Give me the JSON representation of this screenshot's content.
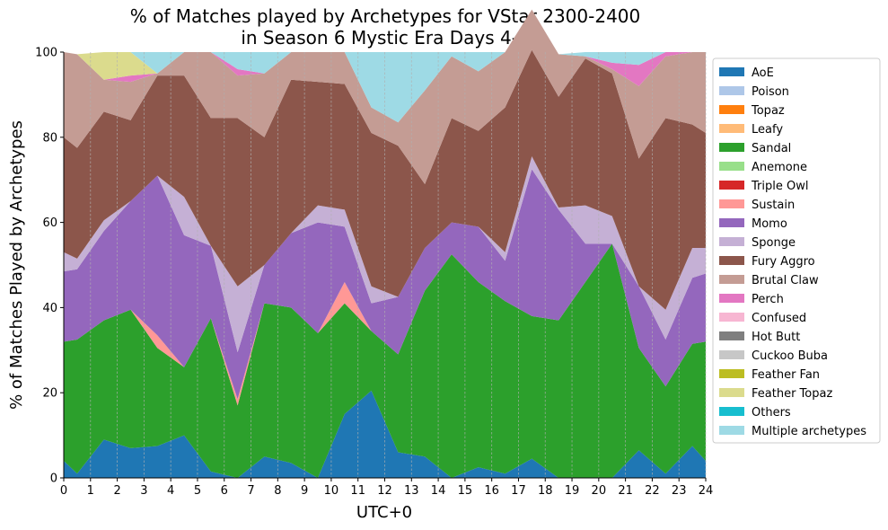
{
  "chart_data": {
    "type": "area",
    "title_line1": "% of Matches played by Archetypes for VStar 2300-2400",
    "title_line2": "in Season 6 Mystic Era Days 4-5",
    "xlabel": "UTC+0",
    "ylabel": "% of Matches Played by Archetypes",
    "xlim": [
      0,
      24
    ],
    "ylim": [
      0,
      100
    ],
    "xticks": [
      0,
      1,
      2,
      3,
      4,
      5,
      6,
      7,
      8,
      9,
      10,
      11,
      12,
      13,
      14,
      15,
      16,
      17,
      18,
      19,
      20,
      21,
      22,
      23,
      24
    ],
    "yticks": [
      0,
      20,
      40,
      60,
      80,
      100
    ],
    "grid": "vertical-dashed",
    "legend_position": "right-outside",
    "x": [
      0,
      0.5,
      1.5,
      2.5,
      3.5,
      4.5,
      5.5,
      6.5,
      7.5,
      8.5,
      9.5,
      10.5,
      11.5,
      12.5,
      13.5,
      14.5,
      15.5,
      16.5,
      17.5,
      18.5,
      19.5,
      20.5,
      21.5,
      22.5,
      23.5,
      24
    ],
    "series": [
      {
        "name": "AoE",
        "color": "#1f77b4",
        "values": [
          4,
          1,
          9,
          7,
          7.5,
          10,
          1.5,
          0,
          5,
          3.5,
          0,
          15,
          20.5,
          6,
          5,
          0,
          2.5,
          1,
          4.5,
          0,
          0,
          0,
          6.5,
          1,
          7.5,
          4
        ]
      },
      {
        "name": "Poison",
        "color": "#aec7e8",
        "values": [
          0,
          0,
          0,
          0,
          0,
          0,
          0,
          0,
          0,
          0,
          0,
          0,
          0,
          0,
          0,
          0,
          0,
          0,
          0,
          0,
          0,
          0,
          0,
          0,
          0,
          0
        ]
      },
      {
        "name": "Topaz",
        "color": "#ff7f0e",
        "values": [
          0,
          0,
          0,
          0,
          0,
          0,
          0,
          0,
          0,
          0,
          0,
          0,
          0,
          0,
          0,
          0,
          0,
          0,
          0,
          0,
          0,
          0,
          0,
          0,
          0,
          0
        ]
      },
      {
        "name": "Leafy",
        "color": "#ffbb78",
        "values": [
          0,
          0,
          0,
          0,
          0,
          0,
          0,
          0,
          0,
          0,
          0,
          0,
          0,
          0,
          0,
          0,
          0,
          0,
          0,
          0,
          0,
          0,
          0,
          0,
          0,
          0
        ]
      },
      {
        "name": "Sandal",
        "color": "#2ca02c",
        "values": [
          28,
          31.5,
          28,
          32.5,
          23,
          16,
          36,
          17,
          36,
          36.5,
          34,
          26,
          14,
          23,
          39,
          52.5,
          43.5,
          40.5,
          33.5,
          37,
          46,
          55,
          24,
          20.5,
          24,
          28
        ]
      },
      {
        "name": "Anemone",
        "color": "#98df8a",
        "values": [
          0,
          0,
          0,
          0,
          0,
          0,
          0,
          0,
          0,
          0,
          0,
          0,
          0,
          0,
          0,
          0,
          0,
          0,
          0,
          0,
          0,
          0,
          0,
          0,
          0,
          0
        ]
      },
      {
        "name": "Triple Owl",
        "color": "#d62728",
        "values": [
          0,
          0,
          0,
          0,
          0,
          0,
          0,
          0,
          0,
          0,
          0,
          0,
          0,
          0,
          0,
          0,
          0,
          0,
          0,
          0,
          0,
          0,
          0,
          0,
          0,
          0
        ]
      },
      {
        "name": "Sustain",
        "color": "#ff9896",
        "values": [
          0,
          0,
          0,
          0,
          3,
          0,
          0,
          1.5,
          0,
          0,
          0,
          5,
          0,
          0,
          0,
          0,
          0,
          0,
          0,
          0,
          0,
          0,
          0,
          0,
          0,
          0
        ]
      },
      {
        "name": "Momo",
        "color": "#9467bd",
        "values": [
          16.5,
          16.5,
          21,
          25.5,
          37.5,
          31,
          17,
          11,
          9,
          17.5,
          26,
          13,
          6.5,
          13.5,
          10,
          7.5,
          13,
          9.5,
          34.5,
          26,
          9,
          0,
          14.5,
          11,
          15.5,
          16
        ]
      },
      {
        "name": "Sponge",
        "color": "#c5b0d5",
        "values": [
          4.5,
          2.5,
          2.5,
          0,
          0,
          9,
          0,
          15.5,
          0,
          0,
          4,
          4,
          4,
          0,
          0,
          0,
          0,
          2,
          3,
          0.5,
          9,
          6.5,
          0,
          7,
          7,
          6
        ]
      },
      {
        "name": "Fury Aggro",
        "color": "#8c564b",
        "values": [
          27,
          26,
          25.5,
          19,
          23.5,
          28.5,
          30,
          39.5,
          30,
          36,
          29,
          29.5,
          36,
          35.5,
          15,
          24.5,
          22.5,
          34,
          25,
          26,
          34.5,
          33.5,
          30,
          45,
          29,
          27
        ]
      },
      {
        "name": "Brutal Claw",
        "color": "#c49c94",
        "values": [
          20,
          22,
          7.5,
          9,
          0.5,
          5.5,
          15.5,
          10,
          15,
          6.5,
          7,
          7.5,
          6,
          5.5,
          22,
          14.5,
          14,
          13,
          9.5,
          10,
          0.5,
          1,
          17,
          14.5,
          17,
          19
        ]
      },
      {
        "name": "Perch",
        "color": "#e377c2",
        "values": [
          0,
          0,
          0,
          1.5,
          0,
          0,
          0,
          1.5,
          0,
          0,
          0,
          0,
          0,
          0,
          0,
          0,
          0,
          0,
          0,
          0,
          0,
          1.5,
          5,
          1,
          0,
          0
        ]
      },
      {
        "name": "Confused",
        "color": "#f7b6d2",
        "values": [
          0,
          0,
          0,
          0,
          0,
          0,
          0,
          0,
          0,
          0,
          0,
          0,
          0,
          0,
          0,
          0,
          0,
          0,
          0,
          0,
          0,
          0,
          0,
          0,
          0,
          0
        ]
      },
      {
        "name": "Hot Butt",
        "color": "#7f7f7f",
        "values": [
          0,
          0,
          0,
          0,
          0,
          0,
          0,
          0,
          0,
          0,
          0,
          0,
          0,
          0,
          0,
          0,
          0,
          0,
          0,
          0,
          0,
          0,
          0,
          0,
          0,
          0
        ]
      },
      {
        "name": "Cuckoo Buba",
        "color": "#c7c7c7",
        "values": [
          0,
          0,
          0,
          0,
          0,
          0,
          0,
          0,
          0,
          0,
          0,
          0,
          0,
          0,
          0,
          0,
          0,
          0,
          0,
          0,
          0,
          0,
          0,
          0,
          0,
          0
        ]
      },
      {
        "name": "Feather Fan",
        "color": "#bcbd22",
        "values": [
          0,
          0,
          0,
          0,
          0,
          0,
          0,
          0,
          0,
          0,
          0,
          0,
          0,
          0,
          0,
          0,
          0,
          0,
          0,
          0,
          0,
          0,
          0,
          0,
          0,
          0
        ]
      },
      {
        "name": "Feather Topaz",
        "color": "#dbdb8d",
        "values": [
          0,
          0,
          6.5,
          5.5,
          0,
          0,
          0,
          0,
          0,
          0,
          0,
          0,
          0,
          0,
          0,
          0,
          0,
          0,
          0,
          0,
          0,
          0,
          0,
          0,
          0,
          0
        ]
      },
      {
        "name": "Others",
        "color": "#17becf",
        "values": [
          0,
          0,
          0,
          0,
          0,
          0,
          0,
          0,
          0,
          0,
          0,
          0,
          0,
          0,
          0,
          0,
          0,
          0,
          0,
          0,
          0,
          0,
          0,
          0,
          0,
          0
        ]
      },
      {
        "name": "Multiple archetypes",
        "color": "#9edae5",
        "values": [
          0,
          0,
          0,
          0,
          5,
          0,
          0,
          4,
          5,
          0,
          0,
          0,
          13,
          16.5,
          9,
          1,
          4.5,
          0,
          0,
          0,
          1,
          2.5,
          3,
          0,
          0,
          0
        ]
      }
    ]
  }
}
